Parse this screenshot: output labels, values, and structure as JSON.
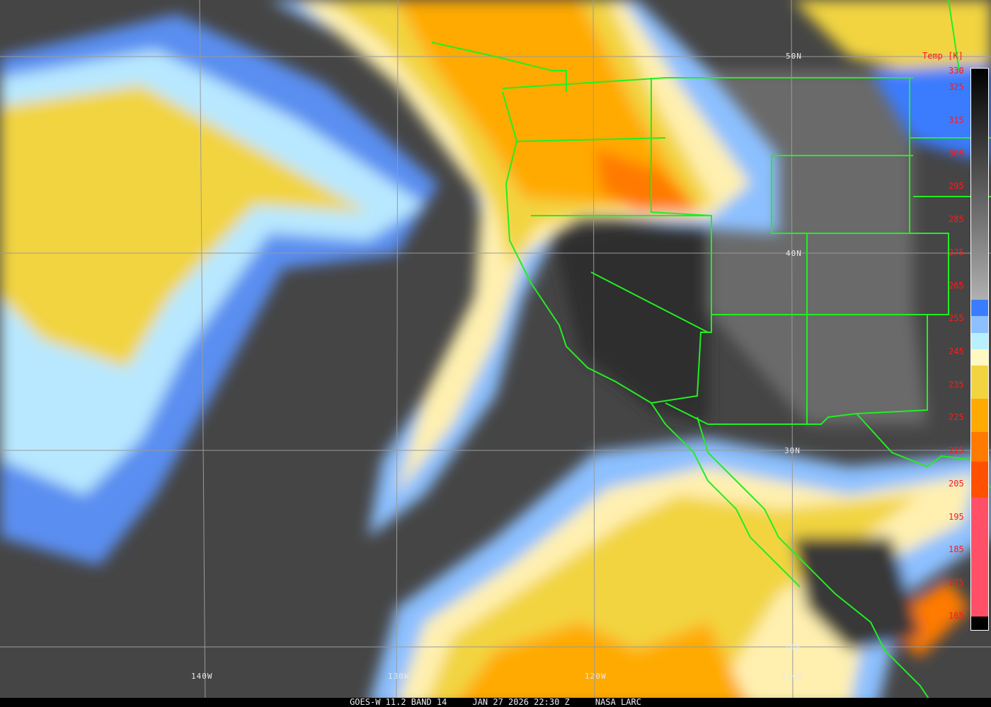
{
  "caption": {
    "source": "GOES-W 11.2 BAND 14",
    "datetime": "JAN 27 2026 22:30 Z",
    "credit": "NASA LARC"
  },
  "colorbar": {
    "title": "Temp [K]",
    "range_k": [
      160,
      330
    ],
    "ticks": [
      "330",
      "325",
      "315",
      "305",
      "295",
      "285",
      "275",
      "265",
      "255",
      "245",
      "235",
      "225",
      "215",
      "205",
      "195",
      "185",
      "175",
      "165"
    ],
    "stops": [
      {
        "from": 330,
        "to": 260,
        "color": "gradient-black-to-gray"
      },
      {
        "from": 260,
        "to": 255,
        "color": "#3a7cff"
      },
      {
        "from": 255,
        "to": 250,
        "color": "#8cc0ff"
      },
      {
        "from": 250,
        "to": 245,
        "color": "#b8f0ff"
      },
      {
        "from": 245,
        "to": 240,
        "color": "#fff8c0"
      },
      {
        "from": 240,
        "to": 230,
        "color": "#f2d440"
      },
      {
        "from": 230,
        "to": 220,
        "color": "#ffaa00"
      },
      {
        "from": 220,
        "to": 211,
        "color": "#ff7a00"
      },
      {
        "from": 211,
        "to": 200,
        "color": "#ff5000"
      },
      {
        "from": 200,
        "to": 164,
        "color": "#ff5068"
      },
      {
        "from": 164,
        "to": 160,
        "color": "#000000"
      }
    ]
  },
  "grid": {
    "longitudes": [
      "140W",
      "130W",
      "120W",
      "110W"
    ],
    "latitudes": [
      "50N",
      "40N",
      "30N",
      "20N"
    ]
  },
  "colors": {
    "boundaries": "#22ee22",
    "grid": "#9a9a9a",
    "labels": "#ff1a1a"
  }
}
